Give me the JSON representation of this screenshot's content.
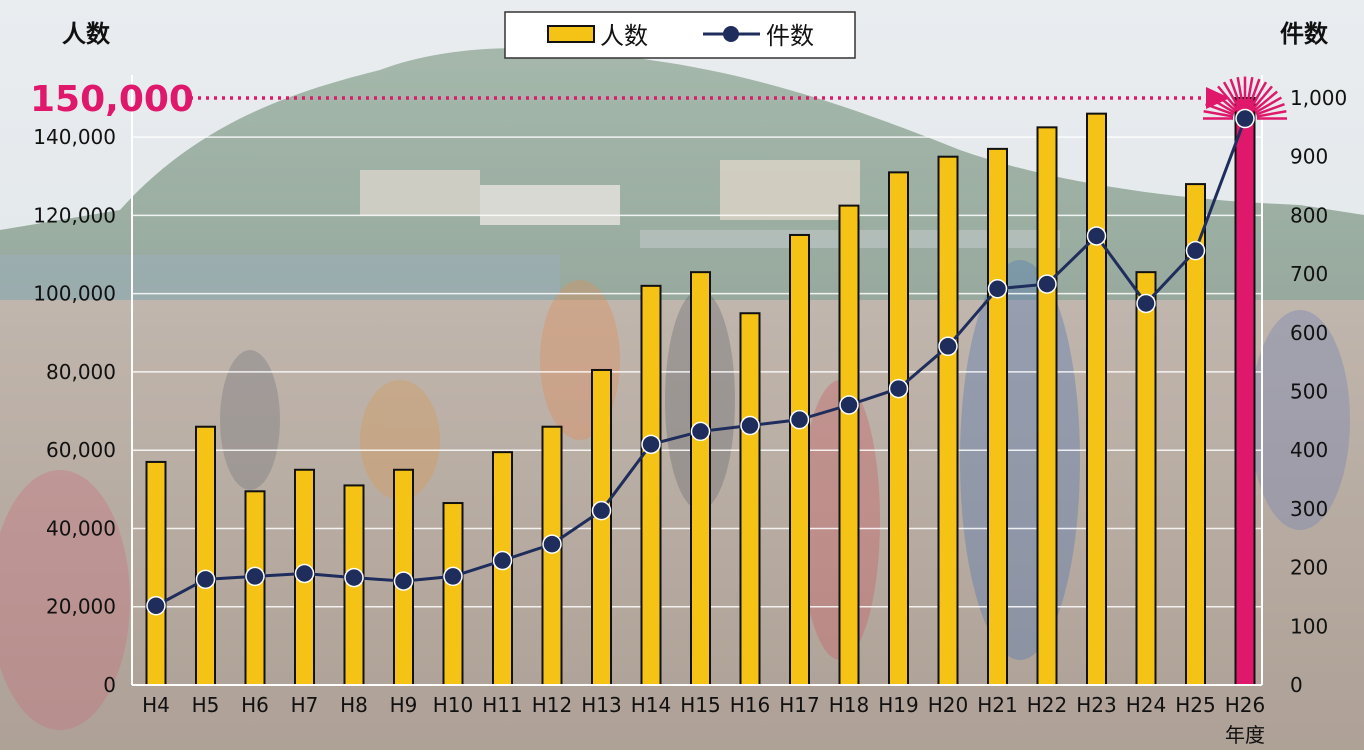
{
  "chart_data": {
    "type": "bar+line",
    "categories": [
      "H4",
      "H5",
      "H6",
      "H7",
      "H8",
      "H9",
      "H10",
      "H11",
      "H12",
      "H13",
      "H14",
      "H15",
      "H16",
      "H17",
      "H18",
      "H19",
      "H20",
      "H21",
      "H22",
      "H23",
      "H24",
      "H25",
      "H26"
    ],
    "series": [
      {
        "name": "人数",
        "type": "bar",
        "axis": "left",
        "values": [
          57000,
          66000,
          49500,
          55000,
          51000,
          55000,
          46500,
          59500,
          66000,
          80500,
          102000,
          105500,
          95000,
          115000,
          122500,
          131000,
          135000,
          137000,
          142500,
          146000,
          105500,
          128000,
          150000
        ]
      },
      {
        "name": "件数",
        "type": "line",
        "axis": "right",
        "values": [
          135,
          180,
          185,
          190,
          183,
          177,
          185,
          212,
          240,
          297,
          410,
          432,
          442,
          452,
          477,
          505,
          577,
          675,
          683,
          765,
          650,
          740,
          965
        ]
      }
    ],
    "left_axis": {
      "label": "人数",
      "ylim": [
        0,
        150000
      ],
      "ticks": [
        "0",
        "20,000",
        "40,000",
        "60,000",
        "80,000",
        "100,000",
        "120,000",
        "140,000"
      ]
    },
    "right_axis": {
      "label": "件数",
      "ylim": [
        0,
        1000
      ],
      "ticks": [
        "0",
        "100",
        "200",
        "300",
        "400",
        "500",
        "600",
        "700",
        "800",
        "900",
        "1,000"
      ]
    },
    "xlabel": "年度",
    "annotation": "150,000",
    "legend_position": "top-center",
    "grid": true,
    "colors": {
      "bar": "#F5C316",
      "bar_highlight": "#E0186C",
      "line": "#1F2D5C",
      "annotation": "#E0186C"
    }
  }
}
